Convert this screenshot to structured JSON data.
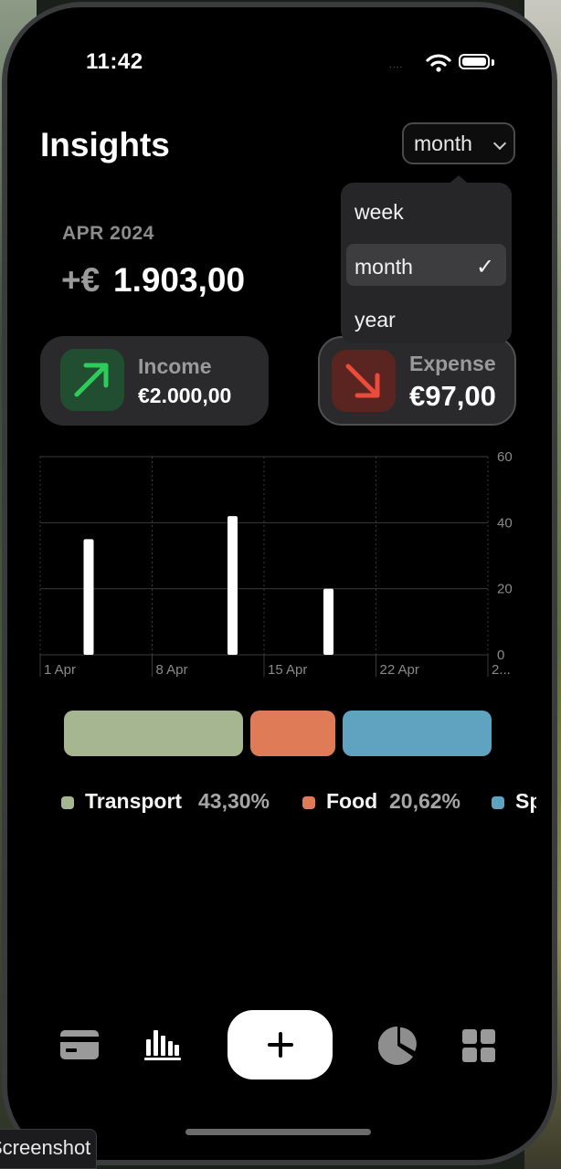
{
  "status_bar": {
    "time": "11:42",
    "signal": "....",
    "icons": [
      "wifi-icon",
      "battery-icon"
    ]
  },
  "header": {
    "title": "Insights"
  },
  "period_select": {
    "value": "month",
    "options": [
      "week",
      "month",
      "year"
    ],
    "selected": "month",
    "check_glyph": "✓"
  },
  "summary": {
    "period": "APR 2024",
    "prefix": "+€",
    "net": "1.903,00"
  },
  "income": {
    "label": "Income",
    "amount": "€2.000,00",
    "color": "#2ecc5a"
  },
  "expense": {
    "label": "Expense",
    "amount": "€97,00",
    "color": "#ea4b3a"
  },
  "chart_data": {
    "type": "bar",
    "ylim": [
      0,
      60
    ],
    "yticks": [
      0,
      20,
      40,
      60
    ],
    "xticks": [
      "1 Apr",
      "8 Apr",
      "15 Apr",
      "22 Apr",
      "2..."
    ],
    "bars": [
      {
        "day": 4,
        "value": 35
      },
      {
        "day": 13,
        "value": 42
      },
      {
        "day": 19,
        "value": 20
      }
    ],
    "bar_color": "#ffffff",
    "grid": true
  },
  "categories": [
    {
      "name": "Transport",
      "percent": "43,30%",
      "color": "#a5b690",
      "share": 0.433
    },
    {
      "name": "Food",
      "percent": "20,62%",
      "color": "#e07b57",
      "share": 0.2062
    },
    {
      "name": "Sp",
      "percent": "",
      "color": "#5fa3c0",
      "share": 0.3608
    }
  ],
  "tabbar": {
    "items": [
      "card-icon",
      "bar-chart-icon",
      "add-icon",
      "pie-chart-icon",
      "grid-icon"
    ]
  },
  "overlay": {
    "screenshot_label": "Screenshot"
  }
}
